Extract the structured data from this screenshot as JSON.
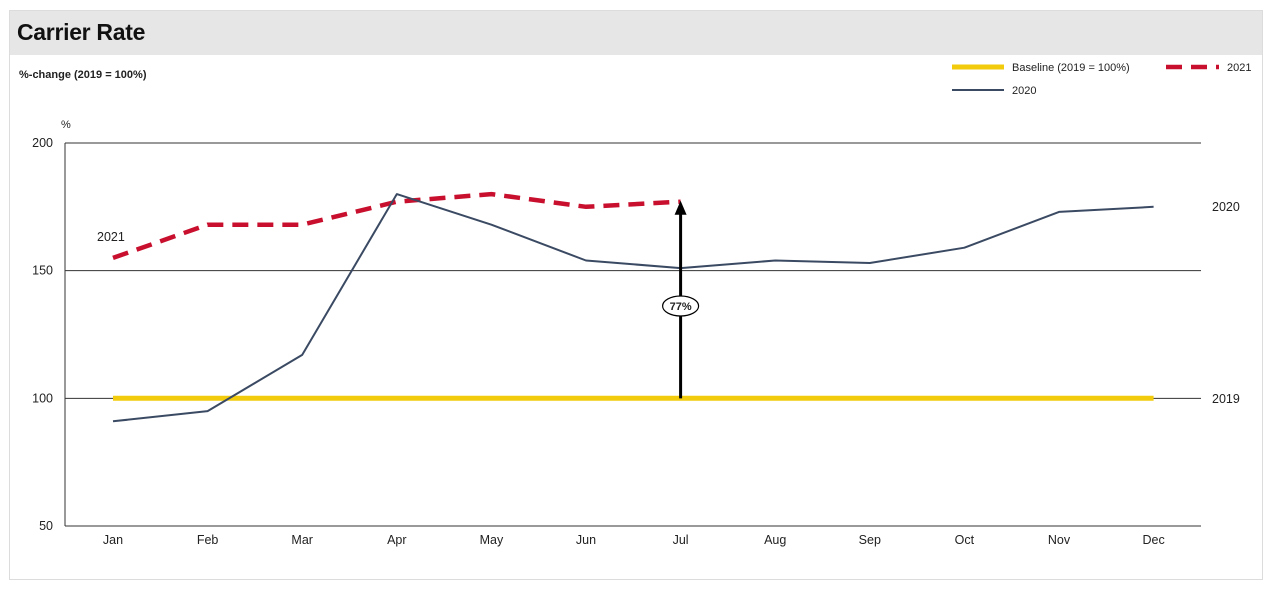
{
  "header": {
    "title": "Carrier Rate"
  },
  "chart_data": {
    "type": "line",
    "subtitle": "%-change (2019 = 100%)",
    "ylabel": "%",
    "ylim": [
      50,
      200
    ],
    "yticks": [
      50,
      100,
      150,
      200
    ],
    "grid": true,
    "legend_position": "top-right",
    "categories": [
      "Jan",
      "Feb",
      "Mar",
      "Apr",
      "May",
      "Jun",
      "Jul",
      "Aug",
      "Sep",
      "Oct",
      "Nov",
      "Dec"
    ],
    "series": [
      {
        "name": "Baseline (2019 = 100%)",
        "end_label": "2019",
        "color": "#f2cc0c",
        "style": "solid",
        "values": [
          100,
          100,
          100,
          100,
          100,
          100,
          100,
          100,
          100,
          100,
          100,
          100
        ]
      },
      {
        "name": "2021",
        "end_label": "2021",
        "color": "#c8102e",
        "style": "dashed",
        "values": [
          155,
          168,
          168,
          177,
          180,
          175,
          177,
          null,
          null,
          null,
          null,
          null
        ]
      },
      {
        "name": "2020",
        "end_label": "2020",
        "color": "#3b4a63",
        "style": "solid",
        "values": [
          91,
          95,
          117,
          180,
          168,
          154,
          151,
          154,
          153,
          159,
          173,
          175
        ]
      }
    ],
    "annotations": [
      {
        "type": "arrow",
        "category": "Jul",
        "from": 100,
        "to": 177,
        "label": "77%"
      }
    ]
  }
}
